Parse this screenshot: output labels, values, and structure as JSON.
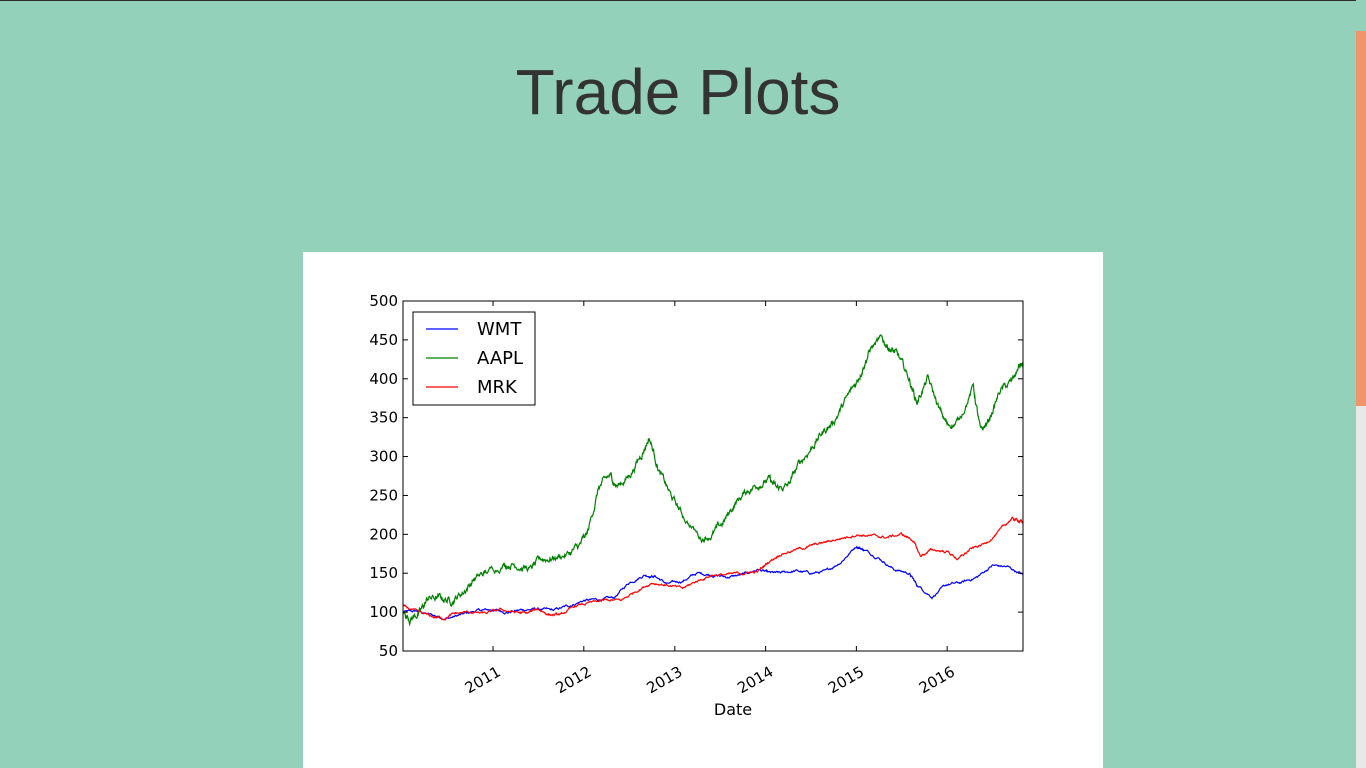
{
  "page": {
    "title": "Trade Plots"
  },
  "theme": {
    "background": "#93d1ba",
    "card": "#ffffff",
    "scroll_thumb": "#f0956b"
  },
  "chart_data": {
    "type": "line",
    "title": "",
    "xlabel": "Date",
    "ylabel": "",
    "ylim": [
      50,
      500
    ],
    "xlim": [
      "2010-01-04",
      "2016-11-01"
    ],
    "yticks": [
      "50",
      "100",
      "150",
      "200",
      "250",
      "300",
      "350",
      "400",
      "450",
      "500"
    ],
    "xticks": [
      {
        "label": "2011",
        "date": "2011-01-01"
      },
      {
        "label": "2012",
        "date": "2012-01-01"
      },
      {
        "label": "2013",
        "date": "2013-01-01"
      },
      {
        "label": "2014",
        "date": "2014-01-01"
      },
      {
        "label": "2015",
        "date": "2015-01-01"
      },
      {
        "label": "2016",
        "date": "2016-01-01"
      }
    ],
    "grid": false,
    "legend_position": "top-left",
    "series": [
      {
        "name": "WMT",
        "color": "#0000ff",
        "points": [
          [
            "2010-01-04",
            100
          ],
          [
            "2010-03-01",
            101
          ],
          [
            "2010-05-01",
            96
          ],
          [
            "2010-07-01",
            92
          ],
          [
            "2010-09-01",
            97
          ],
          [
            "2010-11-01",
            102
          ],
          [
            "2011-01-01",
            103
          ],
          [
            "2011-03-01",
            100
          ],
          [
            "2011-05-01",
            103
          ],
          [
            "2011-07-01",
            104
          ],
          [
            "2011-09-01",
            102
          ],
          [
            "2011-11-01",
            108
          ],
          [
            "2012-01-01",
            115
          ],
          [
            "2012-03-01",
            116
          ],
          [
            "2012-05-01",
            118
          ],
          [
            "2012-07-01",
            138
          ],
          [
            "2012-09-01",
            148
          ],
          [
            "2012-10-15",
            146
          ],
          [
            "2012-12-01",
            136
          ],
          [
            "2013-02-01",
            140
          ],
          [
            "2013-04-01",
            150
          ],
          [
            "2013-06-01",
            148
          ],
          [
            "2013-08-01",
            145
          ],
          [
            "2013-10-01",
            148
          ],
          [
            "2013-12-01",
            155
          ],
          [
            "2014-01-15",
            150
          ],
          [
            "2014-03-01",
            150
          ],
          [
            "2014-05-01",
            153
          ],
          [
            "2014-07-01",
            150
          ],
          [
            "2014-09-01",
            152
          ],
          [
            "2014-11-01",
            165
          ],
          [
            "2015-01-01",
            185
          ],
          [
            "2015-02-01",
            180
          ],
          [
            "2015-04-01",
            170
          ],
          [
            "2015-06-01",
            155
          ],
          [
            "2015-08-01",
            150
          ],
          [
            "2015-09-01",
            135
          ],
          [
            "2015-11-01",
            120
          ],
          [
            "2016-01-01",
            135
          ],
          [
            "2016-03-01",
            138
          ],
          [
            "2016-05-01",
            145
          ],
          [
            "2016-07-01",
            160
          ],
          [
            "2016-09-01",
            158
          ],
          [
            "2016-11-01",
            148
          ]
        ]
      },
      {
        "name": "AAPL",
        "color": "#008000",
        "points": [
          [
            "2010-01-04",
            100
          ],
          [
            "2010-02-01",
            92
          ],
          [
            "2010-03-15",
            100
          ],
          [
            "2010-04-15",
            118
          ],
          [
            "2010-06-01",
            118
          ],
          [
            "2010-07-15",
            115
          ],
          [
            "2010-09-01",
            125
          ],
          [
            "2010-10-15",
            142
          ],
          [
            "2010-12-01",
            150
          ],
          [
            "2011-02-15",
            162
          ],
          [
            "2011-04-01",
            162
          ],
          [
            "2011-06-01",
            155
          ],
          [
            "2011-07-15",
            168
          ],
          [
            "2011-09-01",
            170
          ],
          [
            "2011-11-01",
            175
          ],
          [
            "2011-12-15",
            185
          ],
          [
            "2012-01-15",
            200
          ],
          [
            "2012-03-01",
            260
          ],
          [
            "2012-04-15",
            275
          ],
          [
            "2012-05-15",
            262
          ],
          [
            "2012-07-01",
            275
          ],
          [
            "2012-08-15",
            300
          ],
          [
            "2012-09-20",
            325
          ],
          [
            "2012-11-01",
            280
          ],
          [
            "2012-12-15",
            250
          ],
          [
            "2013-02-01",
            225
          ],
          [
            "2013-04-15",
            195
          ],
          [
            "2013-06-01",
            200
          ],
          [
            "2013-07-15",
            215
          ],
          [
            "2013-09-01",
            240
          ],
          [
            "2013-10-15",
            255
          ],
          [
            "2013-12-01",
            265
          ],
          [
            "2014-01-15",
            270
          ],
          [
            "2014-02-15",
            258
          ],
          [
            "2014-04-01",
            262
          ],
          [
            "2014-05-15",
            290
          ],
          [
            "2014-07-01",
            310
          ],
          [
            "2014-08-15",
            330
          ],
          [
            "2014-10-01",
            345
          ],
          [
            "2014-11-15",
            370
          ],
          [
            "2015-01-01",
            395
          ],
          [
            "2015-02-01",
            420
          ],
          [
            "2015-03-01",
            440
          ],
          [
            "2015-04-15",
            450
          ],
          [
            "2015-05-15",
            440
          ],
          [
            "2015-06-15",
            430
          ],
          [
            "2015-08-01",
            400
          ],
          [
            "2015-09-01",
            370
          ],
          [
            "2015-10-15",
            400
          ],
          [
            "2015-12-01",
            360
          ],
          [
            "2016-01-01",
            340
          ],
          [
            "2016-02-15",
            345
          ],
          [
            "2016-04-15",
            390
          ],
          [
            "2016-05-15",
            330
          ],
          [
            "2016-06-15",
            345
          ],
          [
            "2016-08-01",
            385
          ],
          [
            "2016-09-15",
            395
          ],
          [
            "2016-10-15",
            415
          ],
          [
            "2016-11-01",
            418
          ]
        ]
      },
      {
        "name": "MRK",
        "color": "#ff0000",
        "points": [
          [
            "2010-01-04",
            108
          ],
          [
            "2010-03-01",
            100
          ],
          [
            "2010-05-01",
            94
          ],
          [
            "2010-06-15",
            92
          ],
          [
            "2010-08-01",
            98
          ],
          [
            "2010-10-01",
            100
          ],
          [
            "2010-12-01",
            98
          ],
          [
            "2011-02-01",
            103
          ],
          [
            "2011-04-01",
            100
          ],
          [
            "2011-05-15",
            98
          ],
          [
            "2011-07-01",
            104
          ],
          [
            "2011-08-15",
            97
          ],
          [
            "2011-10-01",
            96
          ],
          [
            "2011-12-01",
            108
          ],
          [
            "2012-02-01",
            112
          ],
          [
            "2012-04-01",
            115
          ],
          [
            "2012-06-01",
            115
          ],
          [
            "2012-08-01",
            128
          ],
          [
            "2012-10-01",
            138
          ],
          [
            "2012-12-01",
            135
          ],
          [
            "2013-02-01",
            130
          ],
          [
            "2013-04-01",
            140
          ],
          [
            "2013-06-01",
            148
          ],
          [
            "2013-08-01",
            148
          ],
          [
            "2013-10-01",
            150
          ],
          [
            "2013-12-01",
            152
          ],
          [
            "2014-01-15",
            165
          ],
          [
            "2014-03-01",
            175
          ],
          [
            "2014-05-01",
            180
          ],
          [
            "2014-07-01",
            185
          ],
          [
            "2014-09-01",
            190
          ],
          [
            "2014-11-01",
            195
          ],
          [
            "2015-01-01",
            200
          ],
          [
            "2015-03-01",
            198
          ],
          [
            "2015-05-01",
            196
          ],
          [
            "2015-07-01",
            200
          ],
          [
            "2015-08-15",
            193
          ],
          [
            "2015-09-15",
            172
          ],
          [
            "2015-11-01",
            180
          ],
          [
            "2016-01-01",
            178
          ],
          [
            "2016-02-15",
            168
          ],
          [
            "2016-04-01",
            180
          ],
          [
            "2016-06-01",
            188
          ],
          [
            "2016-08-01",
            205
          ],
          [
            "2016-09-15",
            220
          ],
          [
            "2016-10-15",
            218
          ],
          [
            "2016-11-01",
            215
          ]
        ]
      }
    ]
  }
}
